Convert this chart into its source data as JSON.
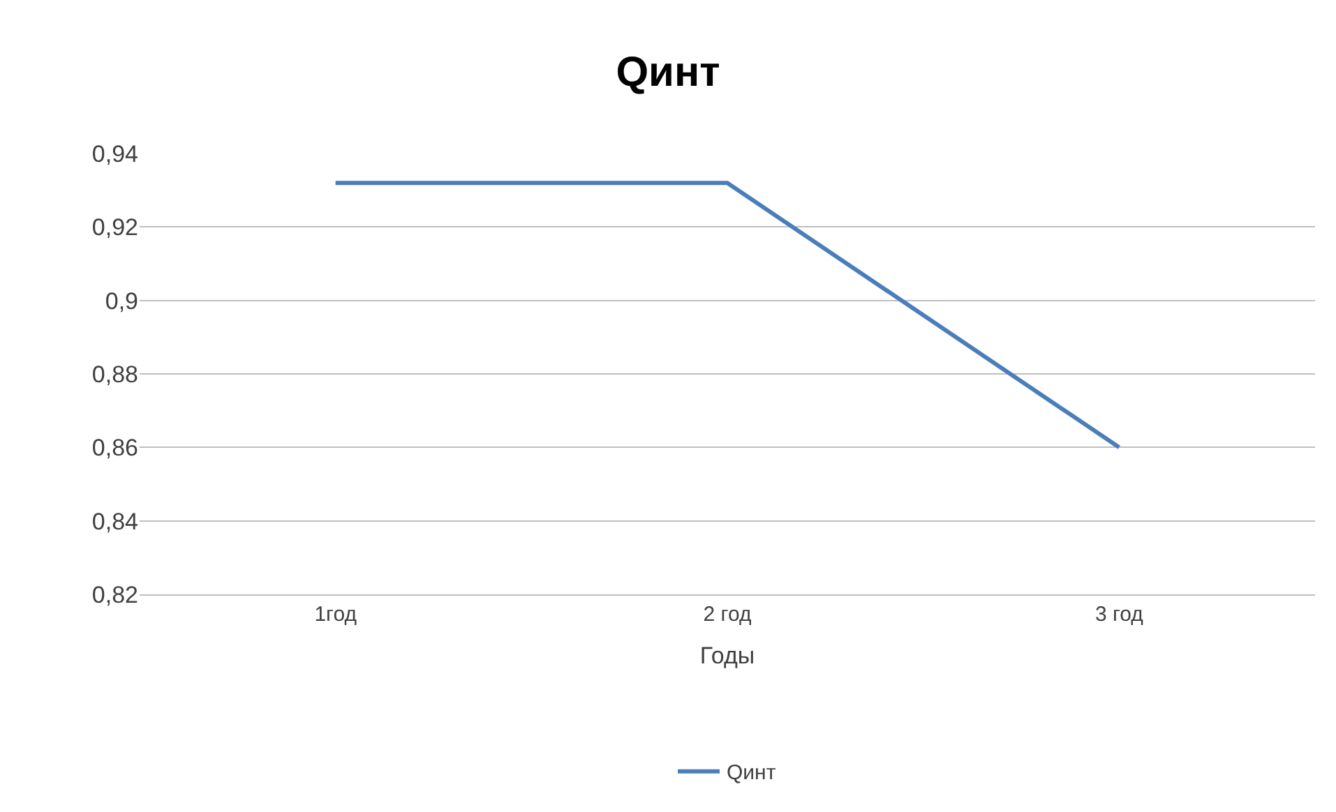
{
  "chart_data": {
    "type": "line",
    "title": "Qинт",
    "xlabel": "Годы",
    "categories": [
      "1год",
      "2 год",
      "3 год"
    ],
    "series": [
      {
        "name": "Qинт",
        "color": "#4a7ebb",
        "values": [
          0.932,
          0.932,
          0.86
        ]
      }
    ],
    "ylim": [
      0.82,
      0.94
    ],
    "yticks": [
      {
        "value": 0.82,
        "label": "0,82"
      },
      {
        "value": 0.84,
        "label": "0,84"
      },
      {
        "value": 0.86,
        "label": "0,86"
      },
      {
        "value": 0.88,
        "label": "0,88"
      },
      {
        "value": 0.9,
        "label": "0,9"
      },
      {
        "value": 0.92,
        "label": "0,92"
      },
      {
        "value": 0.94,
        "label": "0,94"
      }
    ],
    "grid": "y",
    "legend": "bottom",
    "marker": "none",
    "line_style": "solid"
  }
}
